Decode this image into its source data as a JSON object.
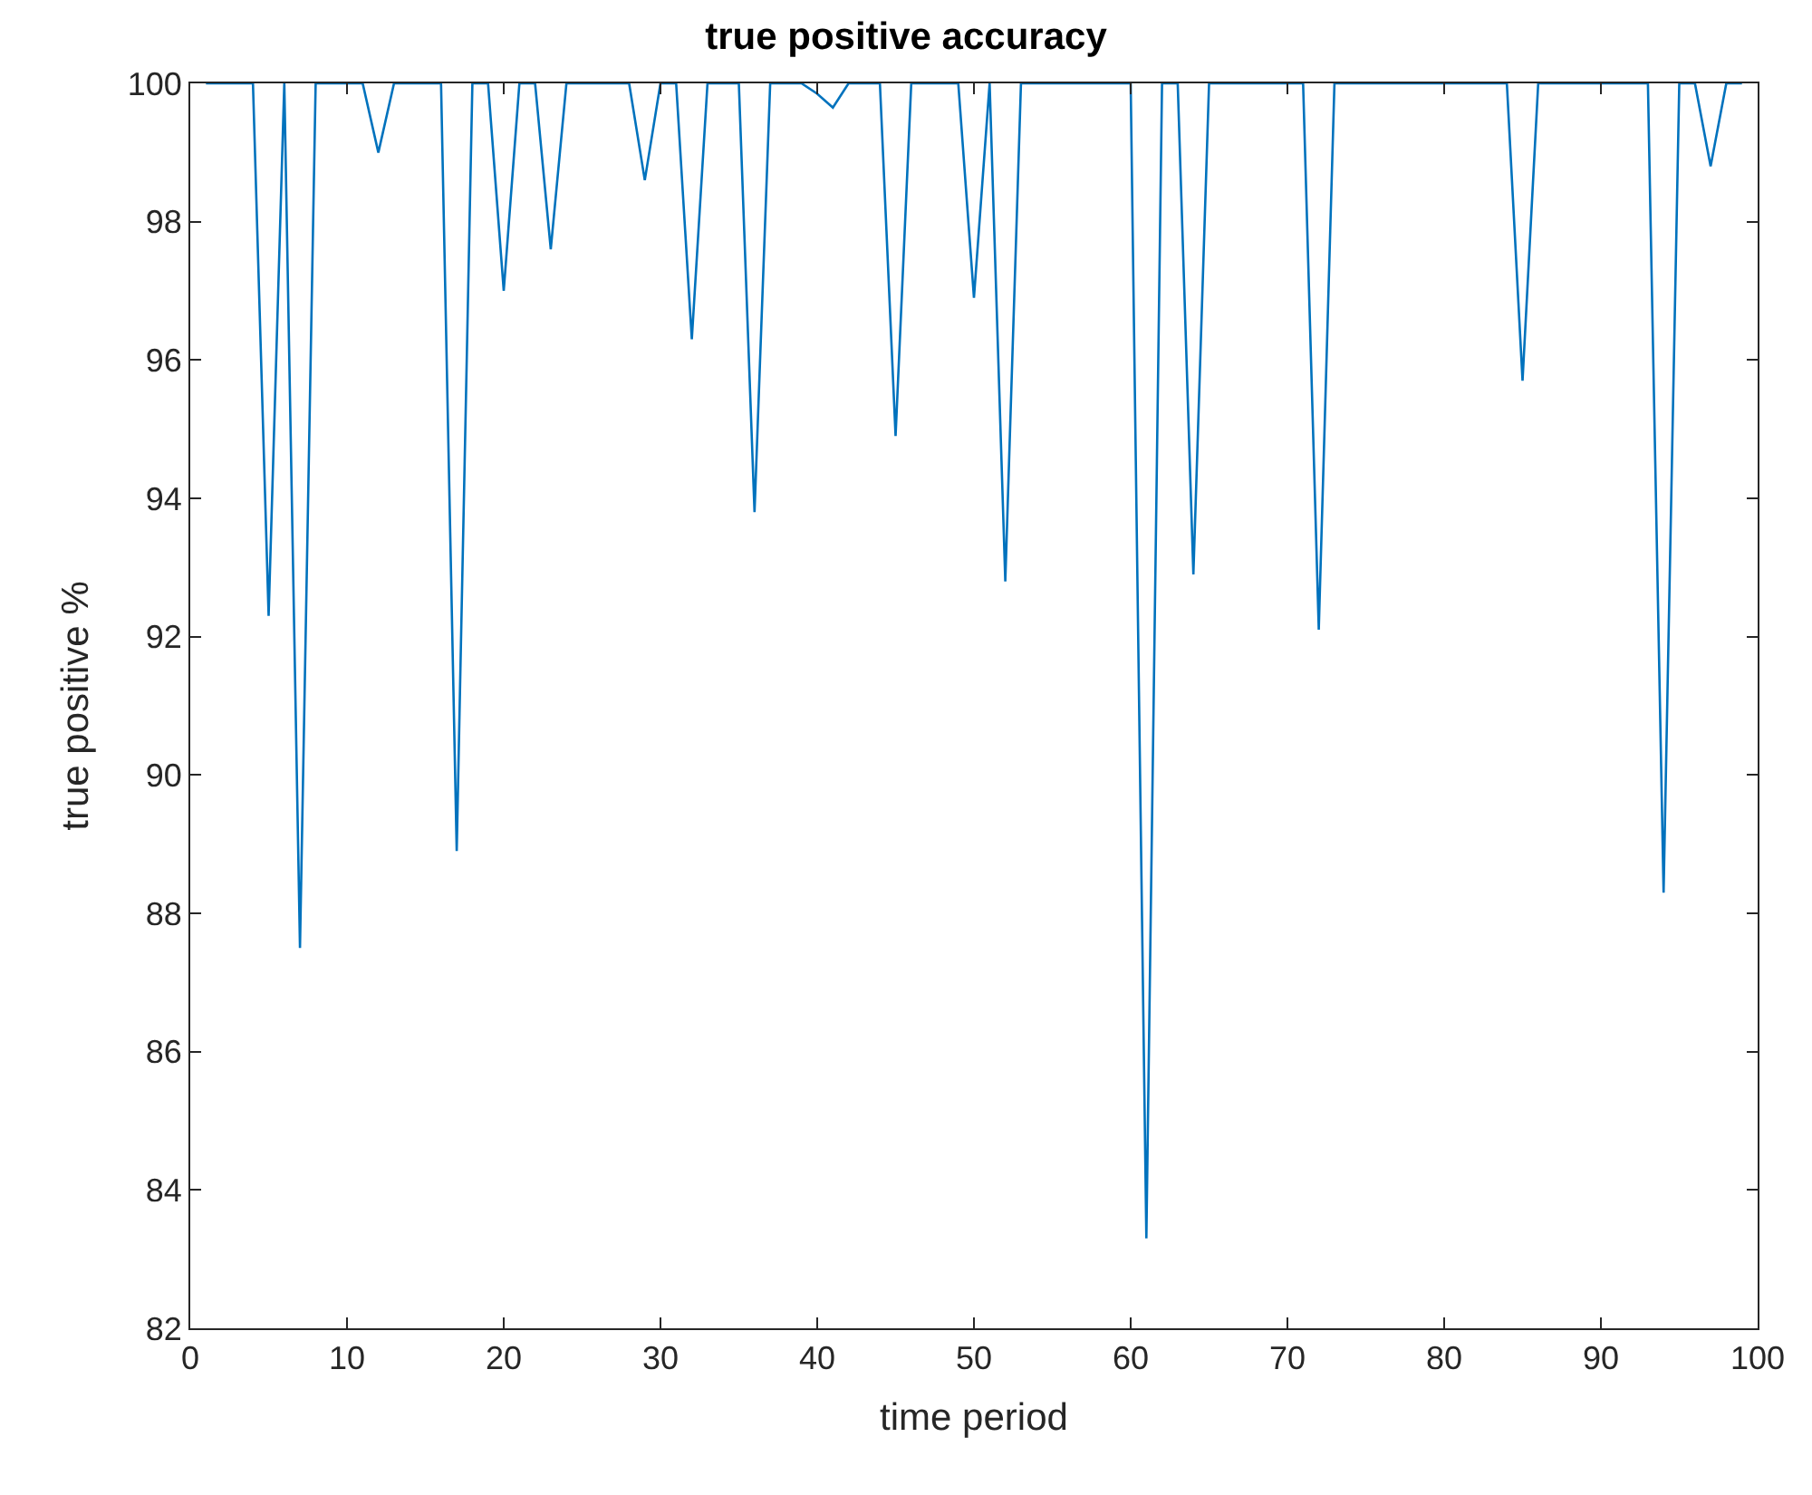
{
  "chart_data": {
    "type": "line",
    "title": "true positive accuracy",
    "xlabel": "time period",
    "ylabel": "true positive %",
    "x": [
      1,
      2,
      3,
      4,
      5,
      6,
      7,
      8,
      9,
      10,
      11,
      12,
      13,
      14,
      15,
      16,
      17,
      18,
      19,
      20,
      21,
      22,
      23,
      24,
      25,
      26,
      27,
      28,
      29,
      30,
      31,
      32,
      33,
      34,
      35,
      36,
      37,
      38,
      39,
      40,
      41,
      42,
      43,
      44,
      45,
      46,
      47,
      48,
      49,
      50,
      51,
      52,
      53,
      54,
      55,
      56,
      57,
      58,
      59,
      60,
      61,
      62,
      63,
      64,
      65,
      66,
      67,
      68,
      69,
      70,
      71,
      72,
      73,
      74,
      75,
      76,
      77,
      78,
      79,
      80,
      81,
      82,
      83,
      84,
      85,
      86,
      87,
      88,
      89,
      90,
      91,
      92,
      93,
      94,
      95,
      96,
      97,
      98,
      99
    ],
    "series": [
      {
        "color": "#0072bd",
        "values": [
          100,
          100,
          100,
          100,
          92.3,
          100,
          87.5,
          100,
          100,
          100,
          100,
          99.0,
          100,
          100,
          100,
          100,
          88.9,
          100,
          100,
          97.0,
          100,
          100,
          97.6,
          100,
          100,
          100,
          100,
          100,
          98.6,
          100,
          100,
          96.3,
          100,
          100,
          100,
          93.8,
          100,
          100,
          100,
          99.85,
          99.65,
          100,
          100,
          100,
          94.9,
          100,
          100,
          100,
          100,
          96.9,
          100,
          92.8,
          100,
          100,
          100,
          100,
          100,
          100,
          100,
          100,
          83.3,
          100,
          100,
          92.9,
          100,
          100,
          100,
          100,
          100,
          100,
          100,
          92.1,
          100,
          100,
          100,
          100,
          100,
          100,
          100,
          100,
          100,
          100,
          100,
          100,
          95.7,
          100,
          100,
          100,
          100,
          100,
          100,
          100,
          100,
          88.3,
          100,
          100,
          98.8,
          100,
          100
        ]
      }
    ],
    "xlim": [
      0,
      100
    ],
    "xticks": [
      0,
      10,
      20,
      30,
      40,
      50,
      60,
      70,
      80,
      90,
      100
    ],
    "ylim": [
      82,
      100
    ],
    "yticks": [
      82,
      84,
      86,
      88,
      90,
      92,
      94,
      96,
      98,
      100
    ],
    "grid": false,
    "legend": false,
    "marker": "none",
    "line_style": "solid"
  }
}
